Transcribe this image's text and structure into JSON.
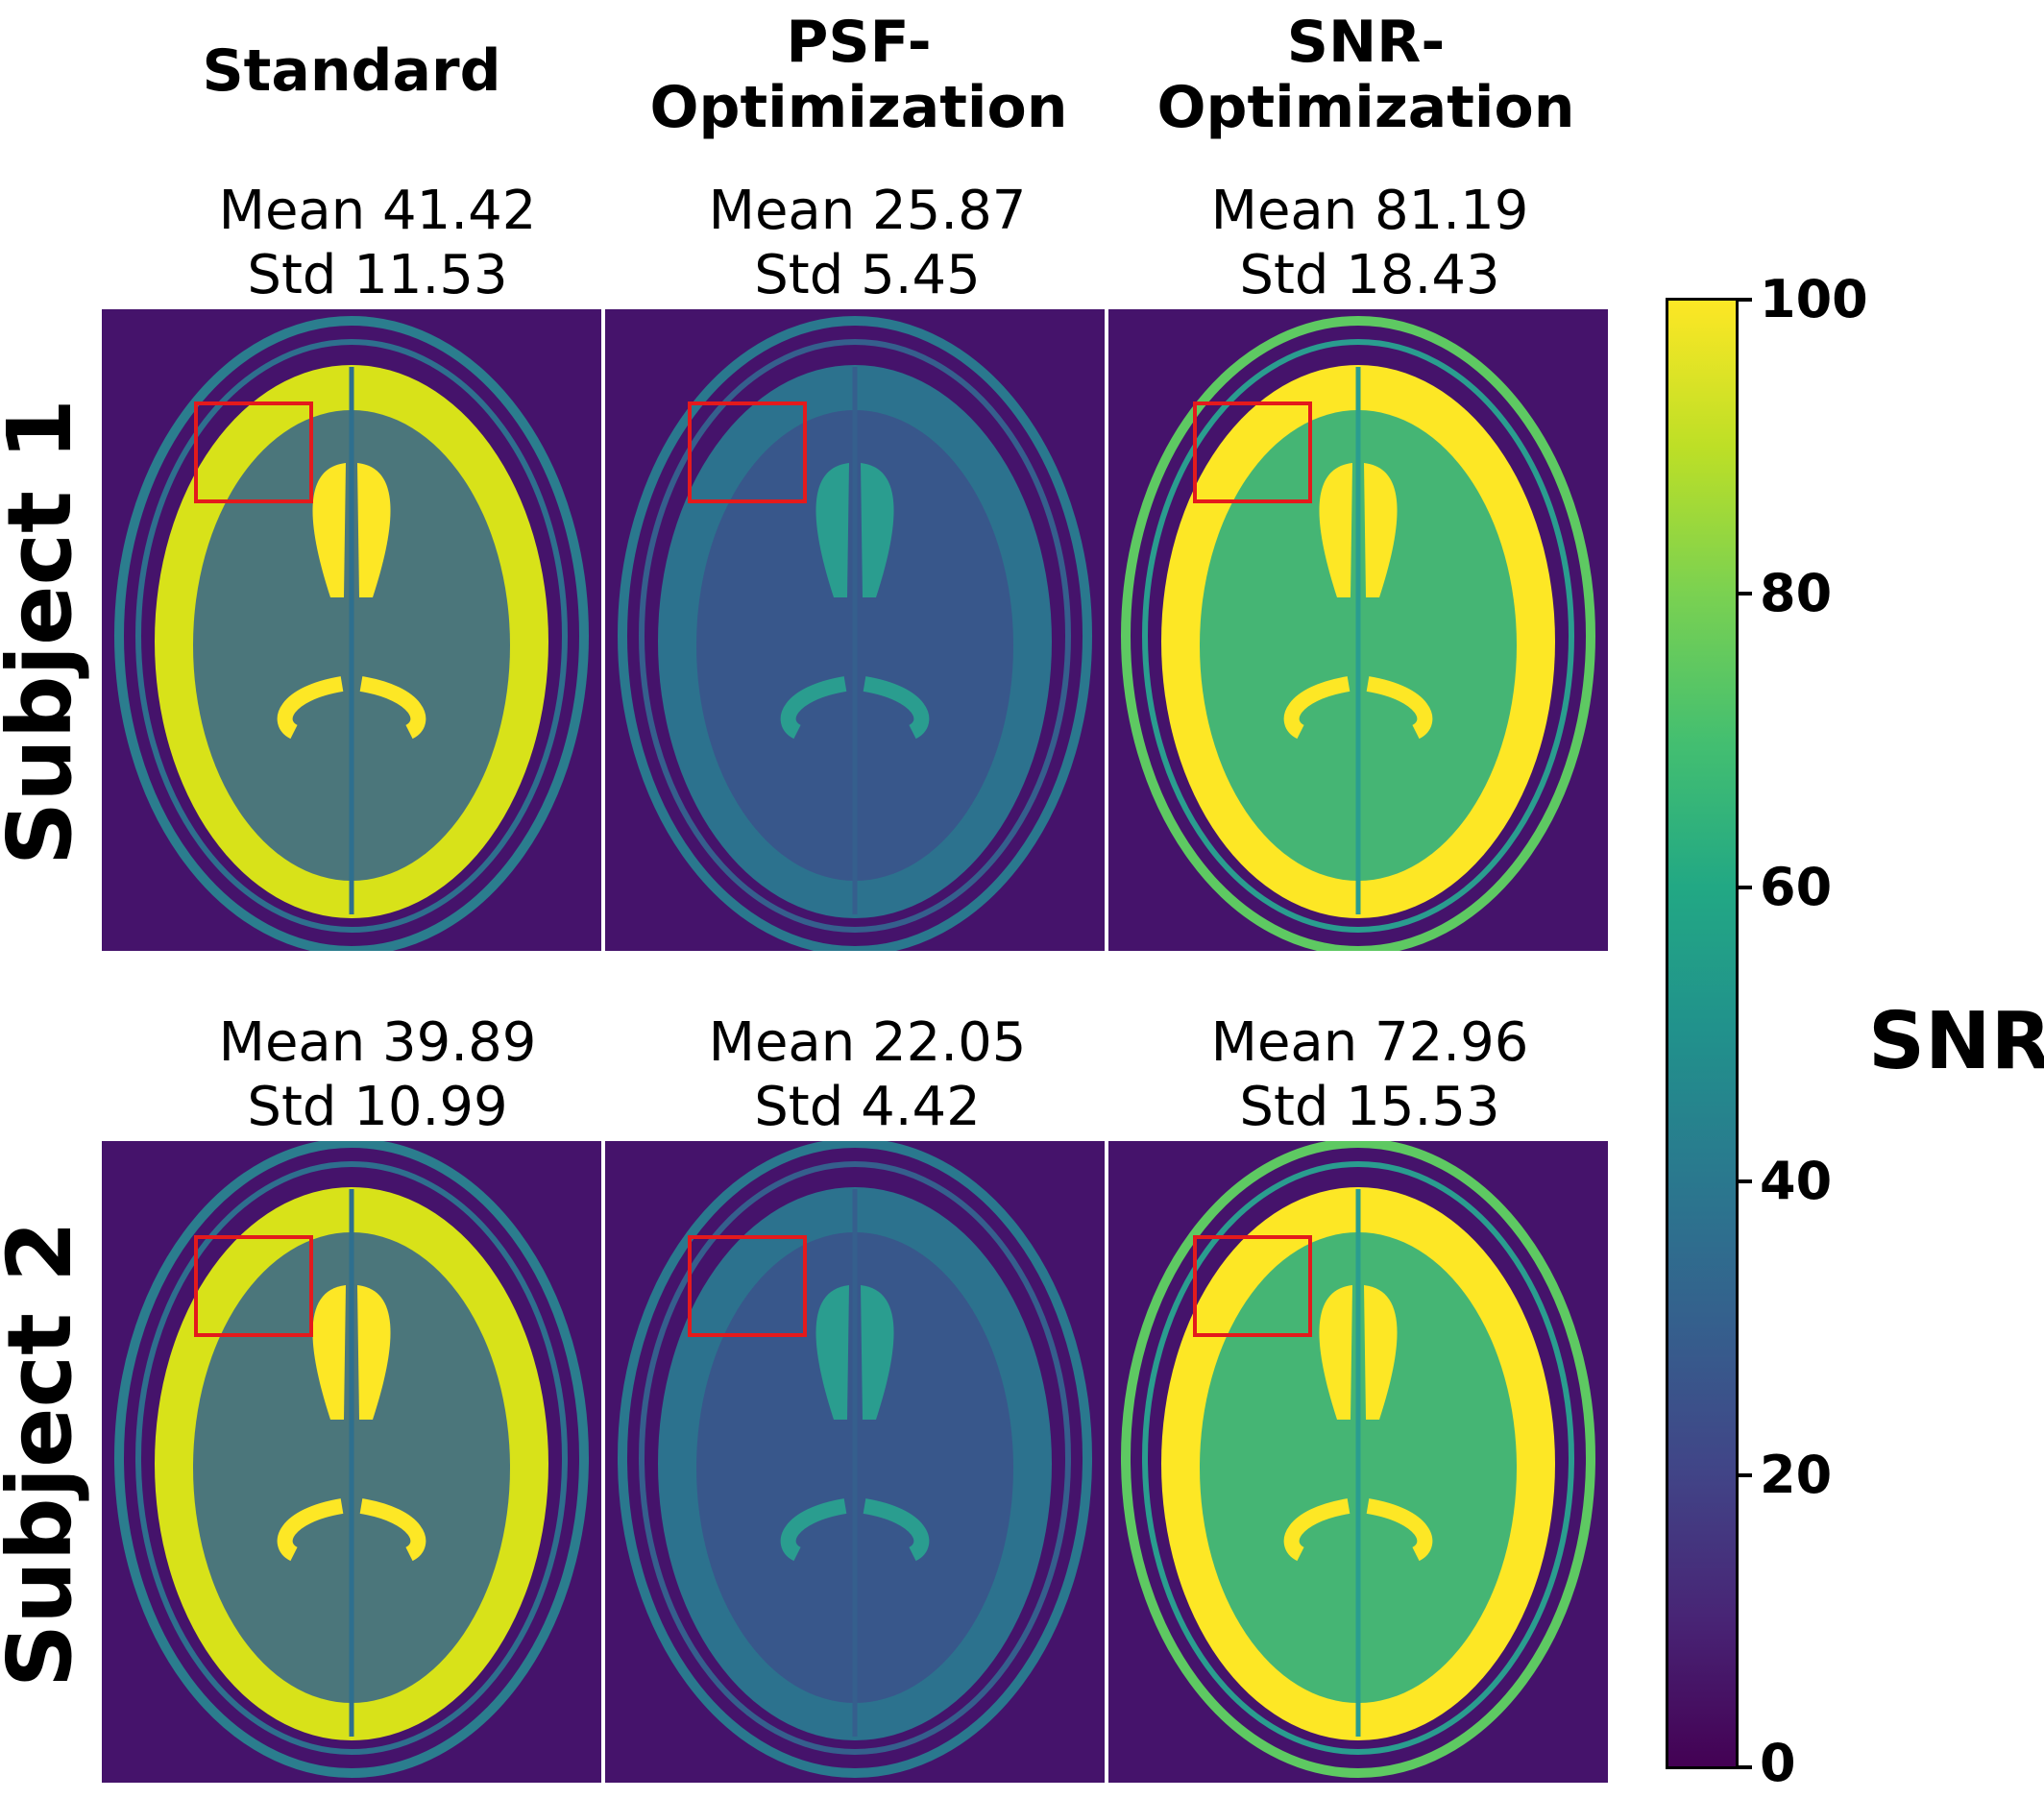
{
  "columns": [
    {
      "title": "Standard"
    },
    {
      "title": "PSF-\nOptimization"
    },
    {
      "title": "SNR-\nOptimization"
    }
  ],
  "rows": [
    {
      "label": "Subject 1",
      "stats": [
        {
          "mean": "Mean 41.42",
          "std": "Std 11.53"
        },
        {
          "mean": "Mean 25.87",
          "std": "Std 5.45"
        },
        {
          "mean": "Mean 81.19",
          "std": "Std 18.43"
        }
      ]
    },
    {
      "label": "Subject 2",
      "stats": [
        {
          "mean": "Mean 39.89",
          "std": "Std 10.99"
        },
        {
          "mean": "Mean 22.05",
          "std": "Std 4.42"
        },
        {
          "mean": "Mean 72.96",
          "std": "Std 15.53"
        }
      ]
    }
  ],
  "colorbar": {
    "label": "SNR",
    "ticks": [
      "100",
      "80",
      "60",
      "40",
      "20",
      "0"
    ],
    "colormap": "viridis",
    "range": [
      0,
      100
    ]
  },
  "roi_color": "#e41a1c",
  "background_color": "#45136b"
}
